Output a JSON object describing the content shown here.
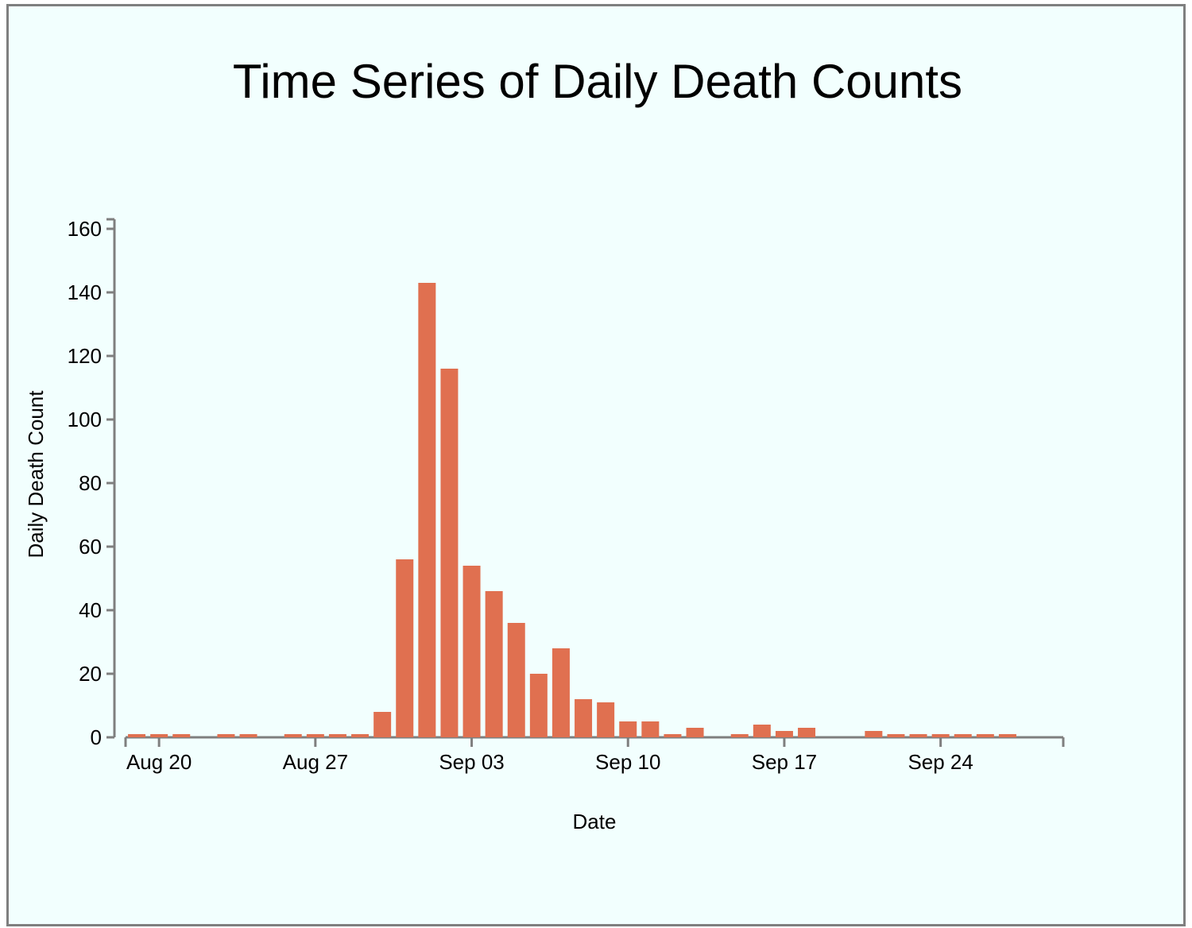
{
  "chart_data": {
    "type": "bar",
    "title": "Time Series of Daily Death Counts",
    "xlabel": "Date",
    "ylabel": "Daily Death Count",
    "ylim": [
      0,
      160
    ],
    "xlim": [
      "Aug 19",
      "Sep 30"
    ],
    "yticks": [
      0,
      20,
      40,
      60,
      80,
      100,
      120,
      140,
      160
    ],
    "xticks": [
      {
        "date": "Aug 20",
        "label": "Aug 20"
      },
      {
        "date": "Aug 27",
        "label": "Aug 27"
      },
      {
        "date": "Sep 03",
        "label": "Sep 03"
      },
      {
        "date": "Sep 10",
        "label": "Sep 10"
      },
      {
        "date": "Sep 17",
        "label": "Sep 17"
      },
      {
        "date": "Sep 24",
        "label": "Sep 24"
      }
    ],
    "x": [
      "Aug 19",
      "Aug 20",
      "Aug 21",
      "Aug 23",
      "Aug 24",
      "Aug 26",
      "Aug 27",
      "Aug 28",
      "Aug 29",
      "Aug 30",
      "Aug 31",
      "Sep 01",
      "Sep 02",
      "Sep 03",
      "Sep 04",
      "Sep 05",
      "Sep 06",
      "Sep 07",
      "Sep 08",
      "Sep 09",
      "Sep 10",
      "Sep 11",
      "Sep 12",
      "Sep 13",
      "Sep 15",
      "Sep 16",
      "Sep 17",
      "Sep 18",
      "Sep 21",
      "Sep 22",
      "Sep 23",
      "Sep 24",
      "Sep 25",
      "Sep 26",
      "Sep 27"
    ],
    "values": [
      1,
      1,
      1,
      1,
      1,
      1,
      1,
      1,
      1,
      8,
      56,
      143,
      116,
      54,
      46,
      36,
      20,
      28,
      12,
      11,
      5,
      5,
      1,
      3,
      1,
      4,
      2,
      3,
      2,
      1,
      1,
      1,
      1,
      1,
      1
    ],
    "grid": false,
    "colors": {
      "bar": "#e07050",
      "axis": "#7f7f7f",
      "background": "#f2fffe"
    }
  }
}
